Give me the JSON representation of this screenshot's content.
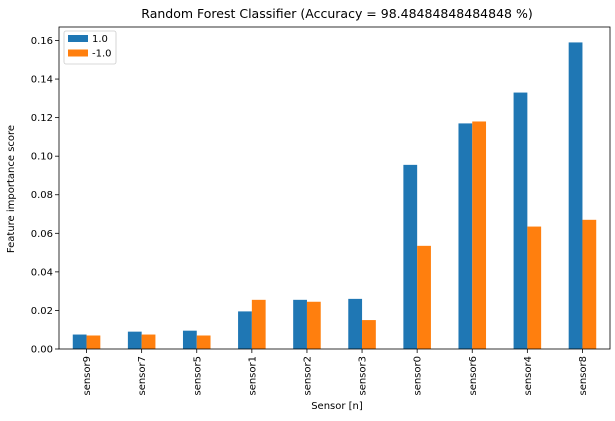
{
  "chart_data": {
    "type": "bar",
    "title": "Random Forest Classifier (Accuracy = 98.48484848484848 %)",
    "xlabel": "Sensor [n]",
    "ylabel": "Feature importance score",
    "categories": [
      "sensor9",
      "sensor7",
      "sensor5",
      "sensor1",
      "sensor2",
      "sensor3",
      "sensor0",
      "sensor6",
      "sensor4",
      "sensor8"
    ],
    "series": [
      {
        "name": "1.0",
        "color": "#1f77b4",
        "values": [
          0.0075,
          0.009,
          0.0095,
          0.0195,
          0.0255,
          0.026,
          0.0955,
          0.117,
          0.133,
          0.159
        ]
      },
      {
        "name": "-1.0",
        "color": "#ff7f0e",
        "values": [
          0.007,
          0.0075,
          0.007,
          0.0255,
          0.0245,
          0.015,
          0.0535,
          0.118,
          0.0635,
          0.067
        ]
      }
    ],
    "yticks": [
      "0.00",
      "0.02",
      "0.04",
      "0.06",
      "0.08",
      "0.10",
      "0.12",
      "0.14",
      "0.16"
    ],
    "ylim": [
      0,
      0.167
    ],
    "legend": "top-left",
    "grid": false
  }
}
